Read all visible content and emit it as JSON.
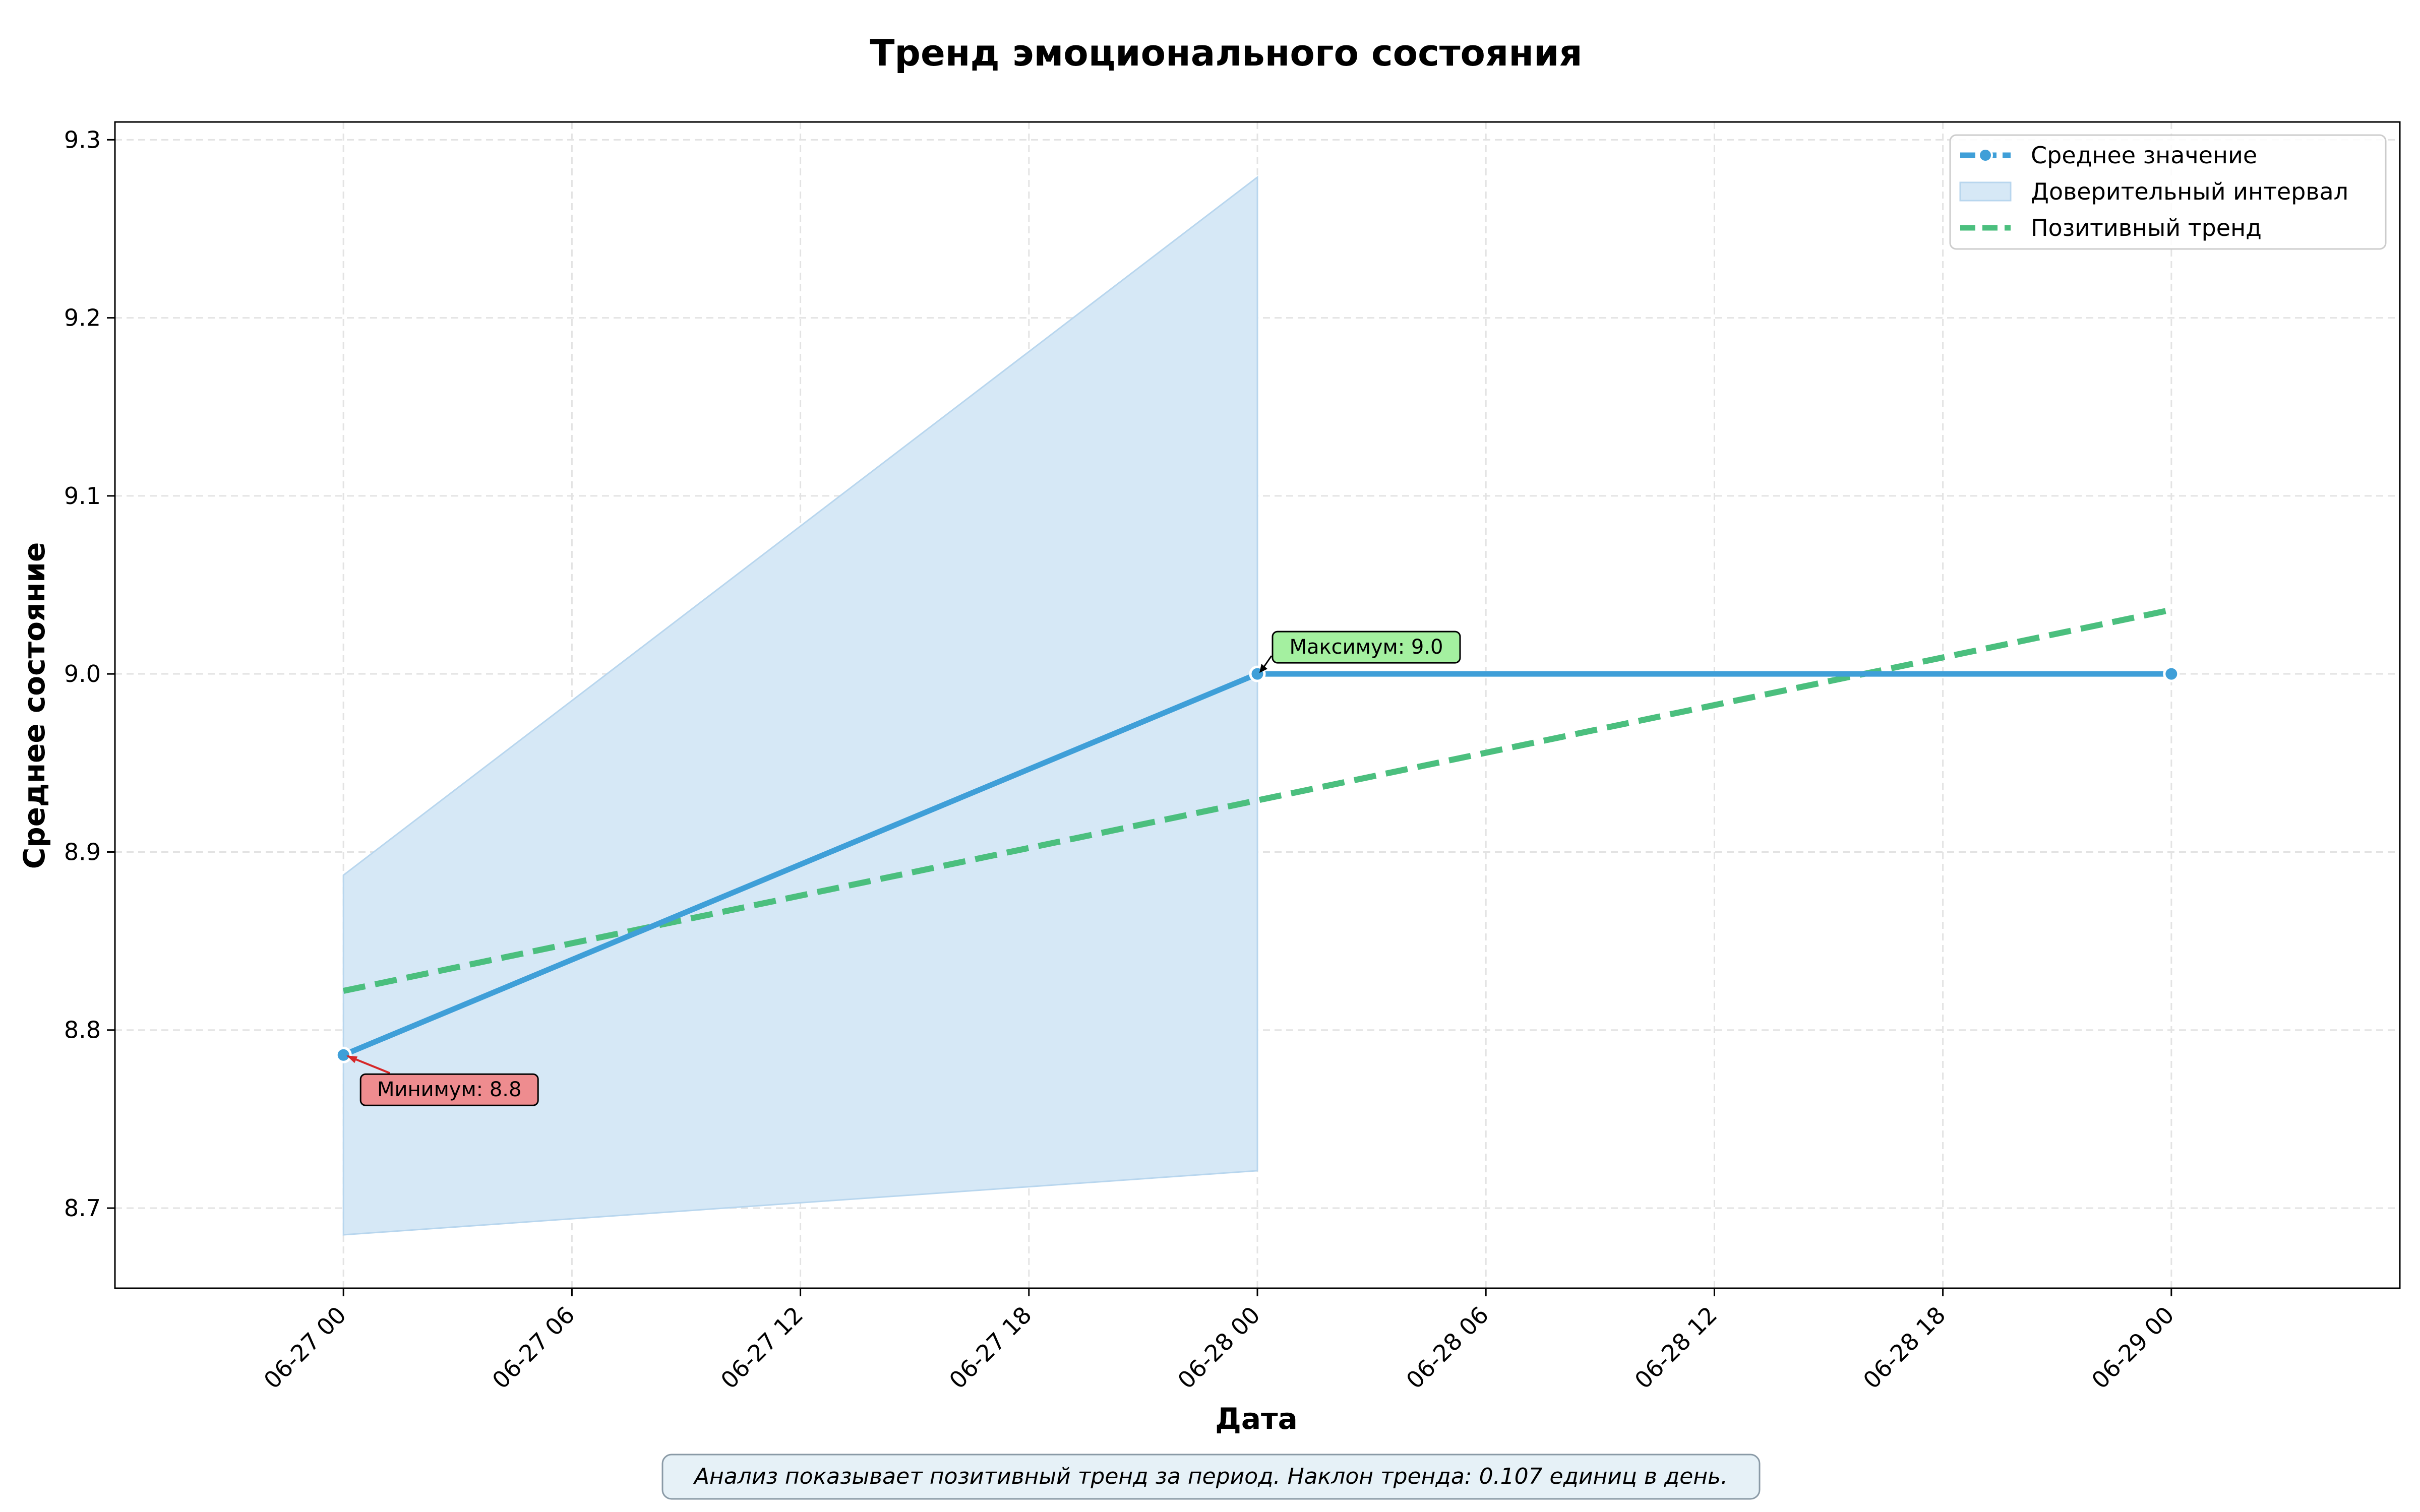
{
  "chart_data": {
    "type": "line",
    "title": "Тренд эмоционального состояния",
    "xlabel": "Дата",
    "ylabel": "Среднее состояние",
    "x_ticks": [
      "06-27 00",
      "06-27 06",
      "06-27 12",
      "06-27 18",
      "06-28 00",
      "06-28 06",
      "06-28 12",
      "06-28 18",
      "06-29 00"
    ],
    "y_ticks": [
      "8.7",
      "8.8",
      "8.9",
      "9.0",
      "9.1",
      "9.2",
      "9.3"
    ],
    "xlim": [
      "06-26 18:00",
      "06-29 06:00"
    ],
    "ylim": [
      8.655,
      9.31
    ],
    "grid": true,
    "legend_position": "top-right",
    "colors": {
      "mean": "#3f9fd8",
      "band": "#d6e8f6",
      "band_edge": "#b8d6ee",
      "trend": "#4bbf7e",
      "max_box": "#a4f0a0",
      "min_box": "#ee8c8f",
      "min_arrow": "#d62728",
      "note_box": "#e6f1f7"
    },
    "series": [
      {
        "name": "Среднее значение",
        "kind": "line-markers",
        "points": [
          {
            "x": "06-27 00:00",
            "y": 8.786
          },
          {
            "x": "06-28 00:00",
            "y": 9.0
          },
          {
            "x": "06-29 00:00",
            "y": 9.0
          }
        ]
      },
      {
        "name": "Доверительный интервал",
        "kind": "band",
        "points": [
          {
            "x": "06-27 00:00",
            "lower": 8.685,
            "upper": 8.887
          },
          {
            "x": "06-28 00:00",
            "lower": 8.721,
            "upper": 9.279
          }
        ]
      },
      {
        "name": "Позитивный тренд",
        "kind": "dashed-line",
        "points": [
          {
            "x": "06-27 00:00",
            "y": 8.822
          },
          {
            "x": "06-29 00:00",
            "y": 9.036
          }
        ]
      }
    ],
    "annotations": [
      {
        "text": "Максимум: 9.0",
        "x": "06-28 00:00",
        "y": 9.0
      },
      {
        "text": "Минимум: 8.8",
        "x": "06-27 00:00",
        "y": 8.786
      }
    ],
    "note": "Анализ показывает позитивный тренд за период. Наклон тренда: 0.107 единиц в день."
  }
}
